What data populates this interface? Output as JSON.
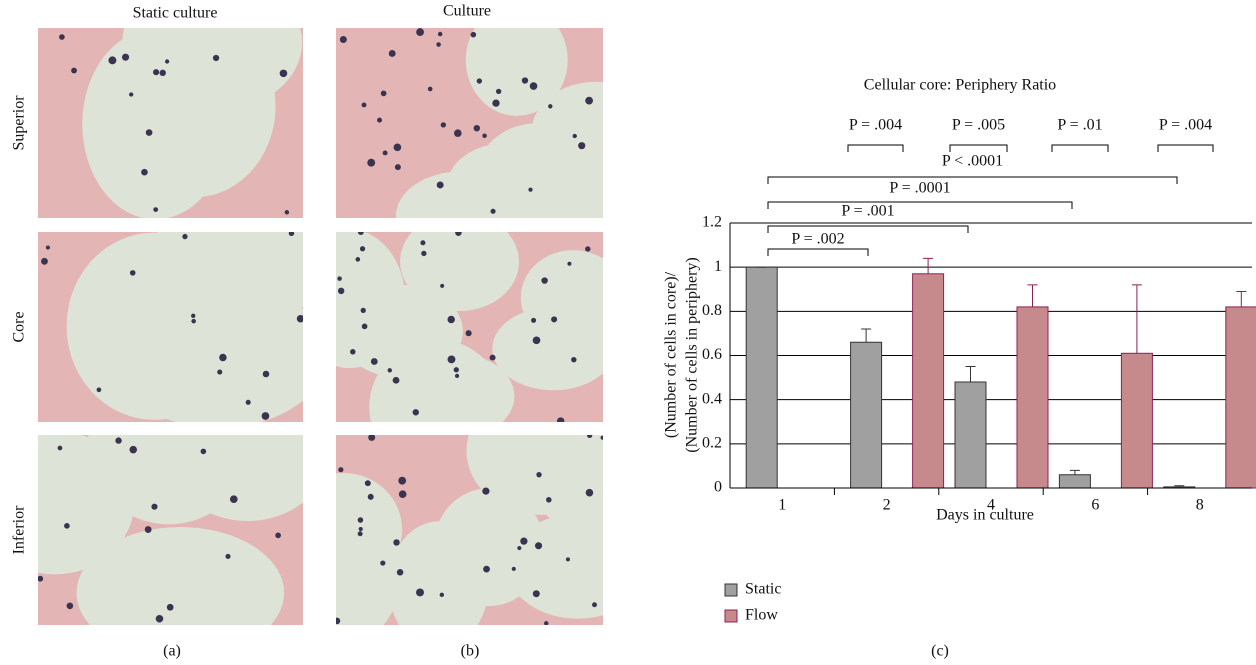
{
  "panels": {
    "columns": [
      "Static culture",
      "Culture"
    ],
    "rows": [
      "Superior",
      "Core",
      "Inferior"
    ],
    "labels": [
      "(a)",
      "(b)",
      "(c)"
    ]
  },
  "chart_data": {
    "type": "bar",
    "title": "Cellular core: Periphery Ratio",
    "xlabel": "Days in culture",
    "ylabel": [
      "(Number of cells in core)/",
      "(Number of cells in periphery)"
    ],
    "categories": [
      "1",
      "2",
      "4",
      "6",
      "8"
    ],
    "series": [
      {
        "name": "Static",
        "color": "#a0a0a0",
        "values": [
          1,
          0.66,
          0.48,
          0.06,
          0.005
        ],
        "errors": [
          0,
          0.06,
          0.07,
          0.02,
          0.005
        ]
      },
      {
        "name": "Flow",
        "color": "#c78a8c",
        "values": [
          null,
          0.97,
          0.82,
          0.61,
          0.82
        ],
        "errors": [
          null,
          0.07,
          0.1,
          0.31,
          0.07
        ]
      }
    ],
    "ylim": [
      0,
      1.2
    ],
    "yticks": [
      0,
      0.2,
      0.4,
      0.6,
      0.8,
      1,
      1.2
    ],
    "grid": true,
    "annotations": [
      "P = .004",
      "P = .005",
      "P = .01",
      "P = .004",
      "P < .0001",
      "P = .0001",
      "P = .001",
      "P = .002"
    ]
  }
}
